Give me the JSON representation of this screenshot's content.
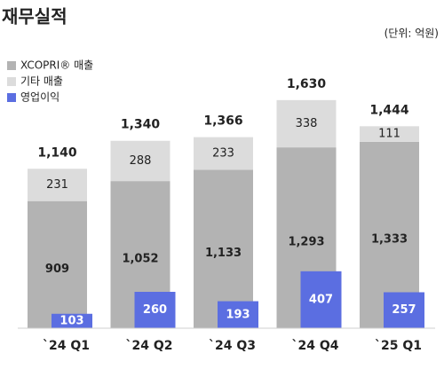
{
  "chart_data": {
    "type": "stacked_bar_overlay",
    "title": "재무실적",
    "unit_label": "(단위: 억원)",
    "categories": [
      "`24 Q1",
      "`24 Q2",
      "`24 Q3",
      "`24 Q4",
      "`25 Q1"
    ],
    "series": [
      {
        "name": "XCOPRI® 매출",
        "color": "#b3b3b3",
        "stack": "sales",
        "values": [
          909,
          1052,
          1133,
          1293,
          1333
        ],
        "value_labels": [
          "909",
          "1,052",
          "1,133",
          "1,293",
          "1,333"
        ]
      },
      {
        "name": "기타 매출",
        "color": "#dcdcdc",
        "stack": "sales",
        "values": [
          231,
          288,
          233,
          338,
          111
        ],
        "value_labels": [
          "231",
          "288",
          "233",
          "338",
          "111"
        ]
      },
      {
        "name": "영업이익",
        "color": "#5b6ee1",
        "stack": "profit",
        "values": [
          103,
          260,
          193,
          407,
          257
        ],
        "value_labels": [
          "103",
          "260",
          "193",
          "407",
          "257"
        ]
      }
    ],
    "totals": {
      "values": [
        1140,
        1340,
        1366,
        1630,
        1444
      ],
      "value_labels": [
        "1,140",
        "1,340",
        "1,366",
        "1,630",
        "1,444"
      ]
    }
  }
}
